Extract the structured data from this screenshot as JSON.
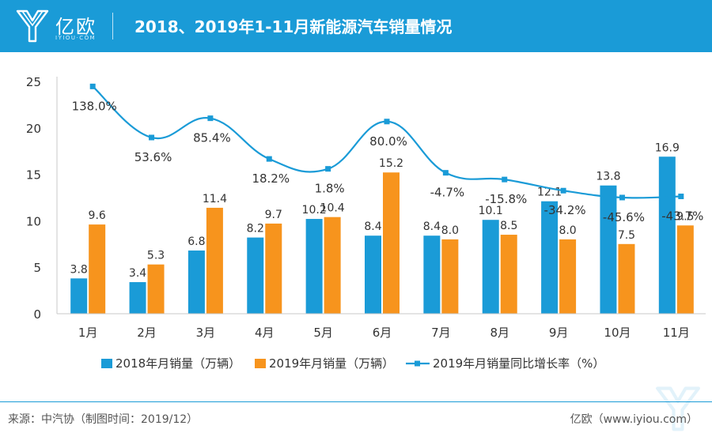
{
  "header": {
    "logo_text": "亿欧",
    "logo_sub": "IYIOU·COM",
    "title": "2018、2019年1-11月新能源汽车销量情况"
  },
  "colors": {
    "header_bg": "#1a9bd7",
    "series_2018": "#1a9bd7",
    "series_2019": "#f7941d",
    "growth_line": "#1a9bd7"
  },
  "chart_data": {
    "type": "bar",
    "title": "2018、2019年1-11月新能源汽车销量情况",
    "categories": [
      "1月",
      "2月",
      "3月",
      "4月",
      "5月",
      "6月",
      "7月",
      "8月",
      "9月",
      "10月",
      "11月"
    ],
    "ylim": [
      0,
      25
    ],
    "yticks": [
      0,
      5,
      10,
      15,
      20,
      25
    ],
    "series": [
      {
        "name": "2018年月销量（万辆）",
        "values": [
          3.8,
          3.4,
          6.8,
          8.2,
          10.2,
          8.4,
          8.4,
          10.1,
          12.1,
          13.8,
          16.9
        ]
      },
      {
        "name": "2019年月销量（万辆）",
        "values": [
          9.6,
          5.3,
          11.4,
          9.7,
          10.4,
          15.2,
          8.0,
          8.5,
          8.0,
          7.5,
          9.5
        ]
      }
    ],
    "line_series": {
      "name": "2019年月销量同比增长率（%）",
      "values": [
        138.0,
        53.6,
        85.4,
        18.2,
        1.8,
        80.0,
        -4.7,
        -15.8,
        -34.2,
        -45.6,
        -43.7
      ],
      "labels": [
        "138.0%",
        "53.6%",
        "85.4%",
        "18.2%",
        "1.8%",
        "80.0%",
        "-4.7%",
        "-15.8%",
        "-34.2%",
        "-45.6%",
        "-43.7%"
      ],
      "secondary_axis_hidden": true
    },
    "legend_position": "bottom",
    "grid": false
  },
  "footer": {
    "source": "来源：中汽协（制图时间：2019/12）",
    "credit": "亿欧（www.iyiou.com）"
  }
}
